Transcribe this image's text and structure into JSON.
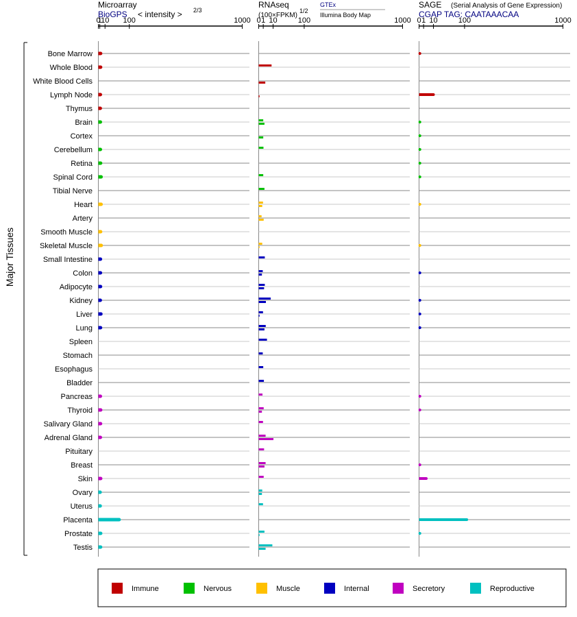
{
  "headers": {
    "microarray": {
      "title": "Microarray",
      "source": "BioGPS",
      "metric": "< intensity >",
      "exponent": "2/3"
    },
    "rnaseq": {
      "title": "RNAseq",
      "metric": "(100×FPKM)",
      "exponent": "1/2",
      "source_a": "GTEx",
      "source_b": "Illumina Body Map"
    },
    "sage": {
      "title": "SAGE",
      "subtitle": "(Serial Analysis of Gene Expression)",
      "tag": "CGAP TAG: CAATAAACAA"
    }
  },
  "axis_label": "Major Tissues",
  "tick_labels": [
    "0",
    "1",
    "10",
    "100",
    "1000"
  ],
  "legend": [
    {
      "key": "immune",
      "label": "Immune",
      "color": "#c00000"
    },
    {
      "key": "nervous",
      "label": "Nervous",
      "color": "#00c000"
    },
    {
      "key": "muscle",
      "label": "Muscle",
      "color": "#ffc000"
    },
    {
      "key": "internal",
      "label": "Internal",
      "color": "#0000c0"
    },
    {
      "key": "secretory",
      "label": "Secretory",
      "color": "#c000c0"
    },
    {
      "key": "reproductive",
      "label": "Reproductive",
      "color": "#00c0c0"
    }
  ],
  "chart_data": {
    "type": "bar",
    "orientation": "horizontal",
    "scale": "power",
    "xlim": [
      0,
      1000
    ],
    "categories": [
      "Bone Marrow",
      "Whole Blood",
      "White Blood Cells",
      "Lymph Node",
      "Thymus",
      "Brain",
      "Cortex",
      "Cerebellum",
      "Retina",
      "Spinal Cord",
      "Tibial Nerve",
      "Heart",
      "Artery",
      "Smooth Muscle",
      "Skeletal Muscle",
      "Small Intestine",
      "Colon",
      "Adipocyte",
      "Kidney",
      "Liver",
      "Lung",
      "Spleen",
      "Stomach",
      "Esophagus",
      "Bladder",
      "Pancreas",
      "Thyroid",
      "Salivary Gland",
      "Adrenal Gland",
      "Pituitary",
      "Breast",
      "Skin",
      "Ovary",
      "Uterus",
      "Placenta",
      "Prostate",
      "Testis"
    ],
    "groups": [
      "immune",
      "immune",
      "immune",
      "immune",
      "immune",
      "nervous",
      "nervous",
      "nervous",
      "nervous",
      "nervous",
      "nervous",
      "muscle",
      "muscle",
      "muscle",
      "muscle",
      "internal",
      "internal",
      "internal",
      "internal",
      "internal",
      "internal",
      "internal",
      "internal",
      "internal",
      "internal",
      "secretory",
      "secretory",
      "secretory",
      "secretory",
      "secretory",
      "secretory",
      "secretory",
      "reproductive",
      "reproductive",
      "reproductive",
      "reproductive",
      "reproductive"
    ],
    "series": [
      {
        "name": "Microarray",
        "panel": 0,
        "exponent": 0.6667,
        "values": [
          2.0,
          2.0,
          null,
          1.7,
          1.6,
          1.7,
          null,
          1.7,
          2.0,
          2.7,
          null,
          2.7,
          null,
          2.0,
          2.9,
          1.8,
          1.8,
          1.9,
          1.6,
          2.4,
          1.9,
          null,
          null,
          null,
          null,
          1.7,
          2.1,
          1.9,
          1.7,
          null,
          null,
          2.1,
          1.4,
          1.5,
          55,
          2.1,
          2.0
        ]
      },
      {
        "name": "GTEx",
        "panel": 1,
        "exponent": 0.5,
        "values": [
          null,
          8,
          null,
          null,
          null,
          1.0,
          null,
          1.1,
          null,
          1.0,
          1.6,
          0.9,
          0.4,
          null,
          0.6,
          1.8,
          0.8,
          1.8,
          7,
          0.9,
          2.4,
          3.3,
          0.8,
          1.0,
          1.3,
          0.7,
          1.2,
          0.9,
          2.3,
          1.4,
          2.3,
          1.2,
          0.6,
          0.9,
          null,
          1.6,
          9
        ]
      },
      {
        "name": "Illumina Body Map",
        "panel": 1,
        "exponent": 0.5,
        "values": [
          null,
          null,
          2.1,
          0.005,
          null,
          1.6,
          1.0,
          null,
          null,
          null,
          null,
          0.6,
          1.2,
          null,
          0.005,
          null,
          0.5,
          1.4,
          2.5,
          0.005,
          1.6,
          null,
          null,
          null,
          null,
          null,
          0.5,
          null,
          10.5,
          null,
          1.6,
          null,
          0.5,
          null,
          null,
          0.005,
          2.3
        ]
      },
      {
        "name": "SAGE",
        "panel": 2,
        "exponent": 0.5,
        "values": [
          0.02,
          null,
          null,
          10,
          null,
          0.01,
          0.01,
          0.01,
          0.01,
          0.01,
          null,
          0.01,
          null,
          null,
          0.01,
          null,
          0.02,
          null,
          0.02,
          0.02,
          0.02,
          null,
          null,
          null,
          null,
          0.02,
          0.02,
          null,
          null,
          null,
          0.02,
          2.5,
          null,
          null,
          110,
          0.01,
          null
        ]
      }
    ]
  }
}
